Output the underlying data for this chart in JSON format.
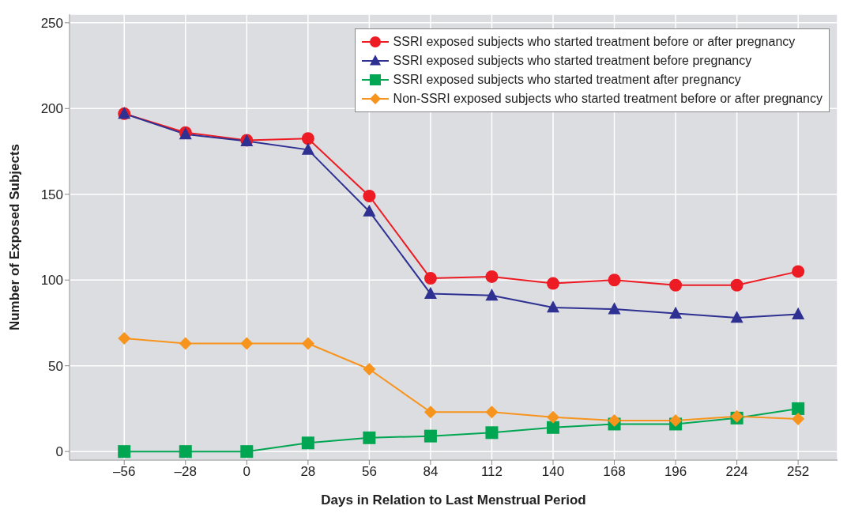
{
  "chart_data": {
    "type": "line",
    "xlabel": "Days in Relation to Last Menstrual Period",
    "ylabel": "Number of Exposed Subjects",
    "x": [
      -56,
      -28,
      0,
      28,
      56,
      84,
      112,
      140,
      168,
      196,
      224,
      252
    ],
    "series": [
      {
        "name": "SSRI exposed subjects who started treatment before or after pregnancy",
        "color": "#ed1c24",
        "marker": "circle",
        "values": [
          197,
          186,
          181.5,
          182.5,
          149,
          101,
          102,
          98,
          100,
          97,
          97,
          105
        ]
      },
      {
        "name": "SSRI exposed subjects who started treatment before pregnancy",
        "color": "#2e3192",
        "marker": "triangle",
        "values": [
          197,
          185,
          181,
          176,
          140,
          92,
          91,
          84,
          83,
          80.5,
          78,
          80
        ]
      },
      {
        "name": "SSRI exposed subjects who started treatment after pregnancy",
        "color": "#00a651",
        "marker": "square",
        "values": [
          0,
          0,
          0,
          5,
          8,
          9,
          11,
          14,
          16,
          16,
          19.5,
          25
        ]
      },
      {
        "name": "Non-SSRI exposed subjects who started treatment before or after pregnancy",
        "color": "#f7941d",
        "marker": "diamond",
        "values": [
          66,
          63,
          63,
          63,
          48,
          23,
          23,
          20,
          18,
          18,
          20.5,
          19
        ]
      }
    ],
    "xlim": [
      -81,
      270
    ],
    "xticks": [
      {
        "value": -56,
        "label": "–56"
      },
      {
        "value": -28,
        "label": "–28"
      },
      0,
      28,
      56,
      84,
      112,
      140,
      168,
      196,
      224,
      252
    ],
    "ylim": [
      -5,
      255
    ],
    "yticks": [
      0,
      50,
      100,
      150,
      200,
      250
    ],
    "grid": true,
    "legend": "top right",
    "line_style": "solid"
  }
}
